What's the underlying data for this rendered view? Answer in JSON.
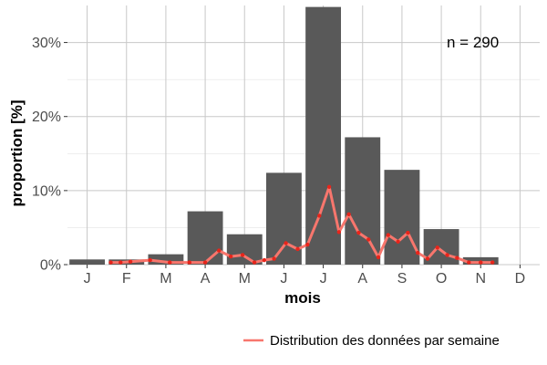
{
  "chart_data": {
    "type": "bar",
    "xlabel": "mois",
    "ylabel": "proportion [%]",
    "annotation": "n = 290",
    "categories": [
      "J",
      "F",
      "M",
      "A",
      "M",
      "J",
      "J",
      "A",
      "S",
      "O",
      "N",
      "D"
    ],
    "values": [
      0.7,
      0.7,
      1.4,
      7.2,
      4.1,
      12.4,
      34.8,
      17.2,
      12.8,
      4.8,
      1.0,
      0.0
    ],
    "ylim": [
      0,
      35
    ],
    "yticks": [
      0,
      10,
      20,
      30
    ],
    "ytick_labels": [
      "0%",
      "10%",
      "20%",
      "30%"
    ],
    "grid": true,
    "bar_color": "#595959",
    "grid_color": "#c8c8c8",
    "legend": {
      "position": "bottom-right"
    },
    "series": [
      {
        "name": "Distribution des données par semaine",
        "type": "line",
        "color": "#f8766d",
        "point_color": "#e8251b",
        "x": [
          1.6,
          1.85,
          2.1,
          2.6,
          3.1,
          3.6,
          4.0,
          4.35,
          4.65,
          4.95,
          5.25,
          5.5,
          5.75,
          6.05,
          6.35,
          6.6,
          6.9,
          7.15,
          7.4,
          7.65,
          7.9,
          8.15,
          8.4,
          8.65,
          8.9,
          9.15,
          9.4,
          9.65,
          9.9,
          10.15,
          10.4,
          10.7,
          11.0,
          11.3
        ],
        "y": [
          0.3,
          0.3,
          0.4,
          0.6,
          0.3,
          0.3,
          0.3,
          1.9,
          1.1,
          1.3,
          0.3,
          0.6,
          0.8,
          2.9,
          2.1,
          2.7,
          6.6,
          10.5,
          4.4,
          6.8,
          4.3,
          3.4,
          1.0,
          4.0,
          3.1,
          4.3,
          1.6,
          0.8,
          2.3,
          1.3,
          0.9,
          0.3,
          0.3,
          0.3
        ]
      }
    ]
  }
}
